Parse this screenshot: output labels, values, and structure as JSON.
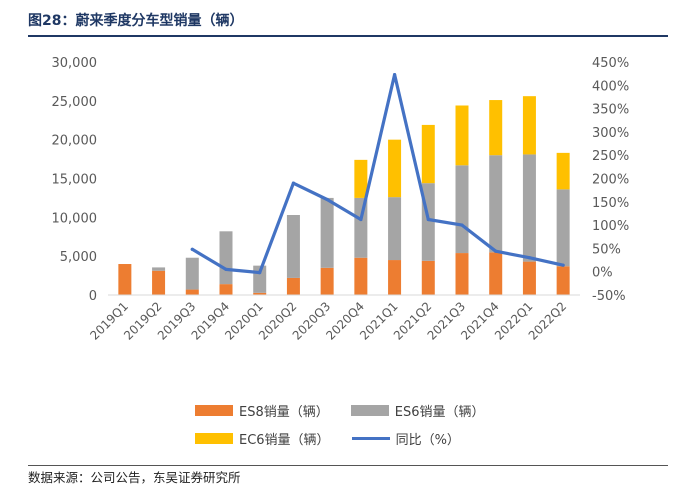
{
  "figure_title": "图28：蔚来季度分车型销量（辆）",
  "source": "数据来源：公司公告，东吴证券研究所",
  "colors": {
    "es8": "#ed7d31",
    "es6": "#a5a5a5",
    "ec6": "#ffc000",
    "yoy": "#4472c4",
    "title": "#1f3864"
  },
  "chart_data": {
    "type": "bar",
    "stacked": true,
    "title": "蔚来季度分车型销量（辆）",
    "categories": [
      "2019Q1",
      "2019Q2",
      "2019Q3",
      "2019Q4",
      "2020Q1",
      "2020Q2",
      "2020Q3",
      "2020Q4",
      "2021Q1",
      "2021Q2",
      "2021Q3",
      "2021Q4",
      "2022Q1",
      "2022Q2"
    ],
    "series": [
      {
        "name": "ES8销量（辆）",
        "axis": "left",
        "values": [
          3989,
          3123,
          700,
          1400,
          280,
          2200,
          3500,
          4800,
          4500,
          4400,
          5400,
          5500,
          4300,
          3700
        ]
      },
      {
        "name": "ES6销量（辆）",
        "axis": "left",
        "values": [
          0,
          430,
          4100,
          6800,
          3500,
          8100,
          9000,
          7700,
          8100,
          10000,
          11300,
          12500,
          13800,
          9900
        ]
      },
      {
        "name": "EC6销量（辆）",
        "axis": "left",
        "values": [
          0,
          0,
          0,
          0,
          0,
          0,
          0,
          4900,
          7400,
          7500,
          7700,
          7100,
          7500,
          4700
        ]
      },
      {
        "name": "同比（%）",
        "type": "line",
        "axis": "right",
        "values": [
          null,
          null,
          48,
          5,
          -2,
          190,
          155,
          112,
          423,
          112,
          100,
          44,
          30,
          14
        ]
      }
    ],
    "y_left": {
      "min": 0,
      "max": 30000,
      "step": 5000,
      "tick_labels": [
        "0",
        "5,000",
        "10,000",
        "15,000",
        "20,000",
        "25,000",
        "30,000"
      ]
    },
    "y_right": {
      "min": -50,
      "max": 450,
      "step": 50,
      "tick_labels": [
        "-50%",
        "0%",
        "50%",
        "100%",
        "150%",
        "200%",
        "250%",
        "300%",
        "350%",
        "400%",
        "450%"
      ]
    },
    "legend": [
      "ES8销量（辆）",
      "ES6销量（辆）",
      "EC6销量（辆）",
      "同比（%）"
    ],
    "legend_position": "bottom",
    "grid": false
  }
}
